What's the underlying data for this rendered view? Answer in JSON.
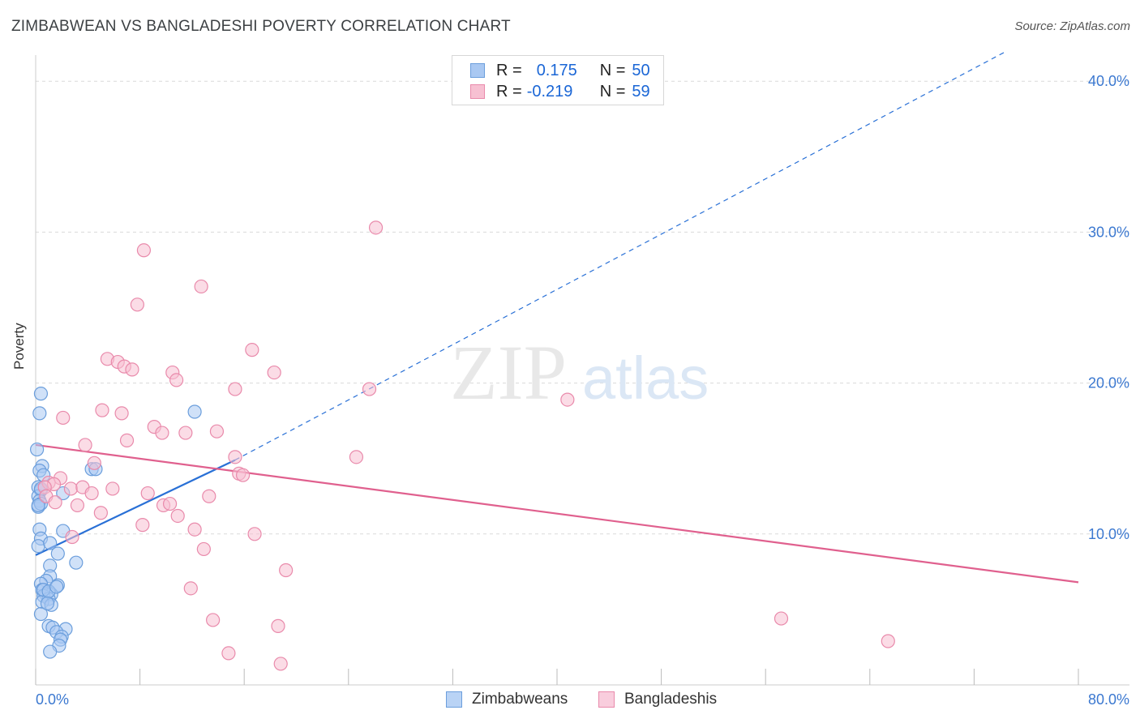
{
  "title": "ZIMBABWEAN VS BANGLADESHI POVERTY CORRELATION CHART",
  "source": "Source: ZipAtlas.com",
  "legend_top": {
    "rows": [
      {
        "r_label": "R =",
        "r_value": "0.175",
        "n_label": "N =",
        "n_value": "50"
      },
      {
        "r_label": "R =",
        "r_value": "-0.219",
        "n_label": "N =",
        "n_value": "59"
      }
    ]
  },
  "legend_bottom": [
    "Zimbabweans",
    "Bangladeshis"
  ],
  "watermark": {
    "zip": "ZIP",
    "atlas": "atlas"
  },
  "colors": {
    "zimbabwe_fill": "#a9c8f2",
    "zimbabwe_stroke": "#6b9edc",
    "zimbabwe_line": "#2970d6",
    "bangladesh_fill": "#f7c0d2",
    "bangladesh_stroke": "#e98aab",
    "bangladesh_line": "#e0608e",
    "axis_label": "#3b78d0",
    "grid": "#d9d9d9"
  },
  "chart_data": {
    "type": "scatter",
    "title": "ZIMBABWEAN VS BANGLADESHI POVERTY CORRELATION CHART",
    "xlabel": "",
    "ylabel": "Poverty",
    "xlim": [
      0,
      80
    ],
    "ylim": [
      0,
      42
    ],
    "x_tick_labels": [
      "0.0%",
      "80.0%"
    ],
    "y_tick_labels": [
      "10.0%",
      "20.0%",
      "30.0%",
      "40.0%"
    ],
    "y_ticks": [
      10,
      20,
      30,
      40
    ],
    "grid": true,
    "legend_position": "bottom",
    "series": [
      {
        "name": "Zimbabweans",
        "points": [
          [
            0.1,
            15.6
          ],
          [
            0.4,
            19.3
          ],
          [
            0.3,
            18.0
          ],
          [
            0.5,
            14.5
          ],
          [
            0.3,
            14.2
          ],
          [
            0.6,
            13.9
          ],
          [
            0.2,
            13.1
          ],
          [
            0.4,
            12.9
          ],
          [
            0.2,
            12.5
          ],
          [
            0.3,
            12.2
          ],
          [
            0.2,
            11.8
          ],
          [
            0.4,
            12.0
          ],
          [
            0.3,
            10.3
          ],
          [
            0.4,
            9.7
          ],
          [
            0.2,
            9.2
          ],
          [
            1.1,
            9.4
          ],
          [
            1.7,
            8.7
          ],
          [
            1.1,
            7.9
          ],
          [
            1.1,
            7.2
          ],
          [
            0.8,
            6.9
          ],
          [
            0.4,
            6.7
          ],
          [
            1.7,
            6.6
          ],
          [
            0.5,
            6.3
          ],
          [
            0.8,
            6.0
          ],
          [
            1.2,
            6.0
          ],
          [
            0.6,
            5.9
          ],
          [
            1.0,
            5.7
          ],
          [
            0.5,
            5.5
          ],
          [
            1.2,
            5.3
          ],
          [
            0.4,
            4.7
          ],
          [
            1.0,
            3.9
          ],
          [
            1.3,
            3.8
          ],
          [
            2.3,
            3.7
          ],
          [
            1.6,
            3.5
          ],
          [
            2.0,
            3.2
          ],
          [
            1.9,
            3.0
          ],
          [
            1.8,
            2.6
          ],
          [
            1.1,
            2.2
          ],
          [
            2.1,
            12.7
          ],
          [
            2.1,
            10.2
          ],
          [
            3.1,
            8.1
          ],
          [
            4.3,
            14.3
          ],
          [
            4.6,
            14.3
          ],
          [
            12.2,
            18.1
          ],
          [
            0.6,
            6.3
          ],
          [
            1.0,
            6.2
          ],
          [
            0.9,
            5.4
          ],
          [
            0.2,
            11.9
          ],
          [
            0.4,
            13.0
          ],
          [
            1.6,
            6.5
          ]
        ],
        "trend": {
          "x0": 0,
          "y0": 8.6,
          "x1": 15.3,
          "y1": 14.9,
          "extrapolate_to": [
            74.5,
            42
          ]
        }
      },
      {
        "name": "Bangladeshis",
        "points": [
          [
            26.1,
            30.3
          ],
          [
            8.3,
            28.8
          ],
          [
            12.7,
            26.4
          ],
          [
            7.8,
            25.2
          ],
          [
            16.6,
            22.2
          ],
          [
            5.5,
            21.6
          ],
          [
            6.3,
            21.4
          ],
          [
            6.8,
            21.1
          ],
          [
            7.4,
            20.9
          ],
          [
            10.5,
            20.7
          ],
          [
            18.3,
            20.7
          ],
          [
            10.8,
            20.2
          ],
          [
            15.3,
            19.6
          ],
          [
            25.6,
            19.6
          ],
          [
            40.8,
            18.9
          ],
          [
            5.1,
            18.2
          ],
          [
            6.6,
            18.0
          ],
          [
            2.1,
            17.7
          ],
          [
            9.1,
            17.1
          ],
          [
            9.7,
            16.7
          ],
          [
            11.5,
            16.7
          ],
          [
            13.9,
            16.8
          ],
          [
            7.0,
            16.2
          ],
          [
            3.8,
            15.9
          ],
          [
            15.3,
            15.1
          ],
          [
            24.6,
            15.1
          ],
          [
            4.5,
            14.7
          ],
          [
            15.6,
            14.0
          ],
          [
            15.9,
            13.9
          ],
          [
            1.9,
            13.7
          ],
          [
            1.0,
            13.4
          ],
          [
            1.4,
            13.3
          ],
          [
            0.7,
            13.1
          ],
          [
            2.7,
            13.0
          ],
          [
            3.6,
            13.1
          ],
          [
            5.9,
            13.0
          ],
          [
            4.3,
            12.7
          ],
          [
            8.6,
            12.7
          ],
          [
            0.8,
            12.5
          ],
          [
            13.3,
            12.5
          ],
          [
            1.5,
            12.1
          ],
          [
            3.2,
            11.9
          ],
          [
            9.8,
            11.9
          ],
          [
            10.3,
            12.0
          ],
          [
            5.0,
            11.4
          ],
          [
            10.9,
            11.2
          ],
          [
            8.2,
            10.6
          ],
          [
            12.2,
            10.3
          ],
          [
            16.8,
            10.0
          ],
          [
            2.8,
            9.8
          ],
          [
            12.9,
            9.0
          ],
          [
            19.2,
            7.6
          ],
          [
            11.9,
            6.4
          ],
          [
            13.6,
            4.3
          ],
          [
            18.6,
            3.9
          ],
          [
            57.2,
            4.4
          ],
          [
            65.4,
            2.9
          ],
          [
            14.8,
            2.1
          ],
          [
            18.8,
            1.4
          ]
        ],
        "trend": {
          "x0": 0,
          "y0": 15.9,
          "x1": 80,
          "y1": 6.8
        }
      }
    ]
  }
}
